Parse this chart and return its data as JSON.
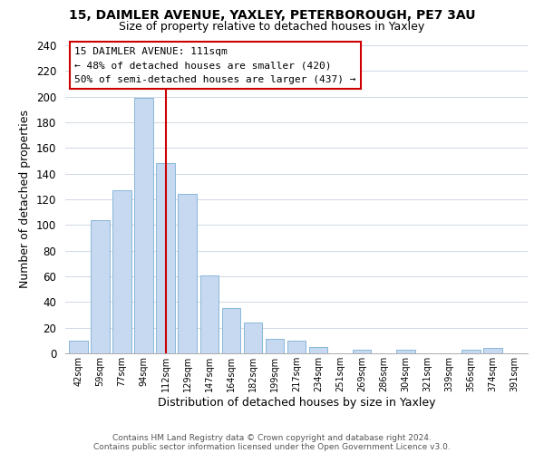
{
  "title": "15, DAIMLER AVENUE, YAXLEY, PETERBOROUGH, PE7 3AU",
  "subtitle": "Size of property relative to detached houses in Yaxley",
  "xlabel": "Distribution of detached houses by size in Yaxley",
  "ylabel": "Number of detached properties",
  "bar_color": "#c6d9f0",
  "bar_edge_color": "#7bafd4",
  "bin_labels": [
    "42sqm",
    "59sqm",
    "77sqm",
    "94sqm",
    "112sqm",
    "129sqm",
    "147sqm",
    "164sqm",
    "182sqm",
    "199sqm",
    "217sqm",
    "234sqm",
    "251sqm",
    "269sqm",
    "286sqm",
    "304sqm",
    "321sqm",
    "339sqm",
    "356sqm",
    "374sqm",
    "391sqm"
  ],
  "bar_values": [
    10,
    104,
    127,
    199,
    148,
    124,
    61,
    35,
    24,
    11,
    10,
    5,
    0,
    3,
    0,
    3,
    0,
    0,
    3,
    4,
    0
  ],
  "ylim": [
    0,
    240
  ],
  "yticks": [
    0,
    20,
    40,
    60,
    80,
    100,
    120,
    140,
    160,
    180,
    200,
    220,
    240
  ],
  "vline_x_idx": 4,
  "vline_color": "#cc0000",
  "annotation_title": "15 DAIMLER AVENUE: 111sqm",
  "annotation_line1": "← 48% of detached houses are smaller (420)",
  "annotation_line2": "50% of semi-detached houses are larger (437) →",
  "footer_line1": "Contains HM Land Registry data © Crown copyright and database right 2024.",
  "footer_line2": "Contains public sector information licensed under the Open Government Licence v3.0.",
  "background_color": "#ffffff",
  "grid_color": "#d0d8e4"
}
